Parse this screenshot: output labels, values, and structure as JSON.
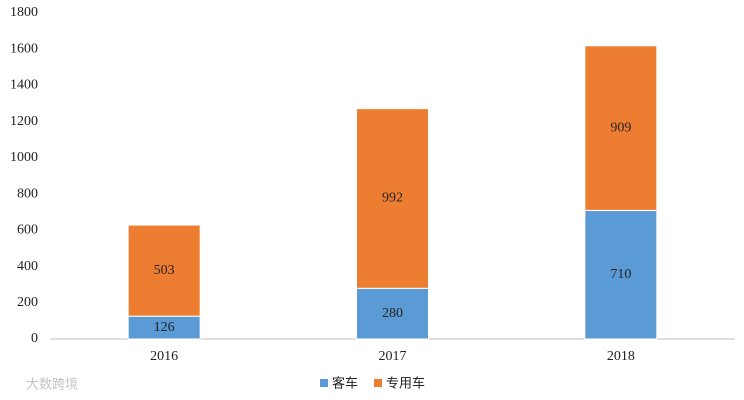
{
  "chart_data": {
    "type": "stacked_bar",
    "categories": [
      "2016",
      "2017",
      "2018"
    ],
    "series": [
      {
        "name": "客车",
        "color": "#5b9bd5",
        "values": [
          126,
          280,
          710
        ]
      },
      {
        "name": "专用车",
        "color": "#ed7d31",
        "values": [
          503,
          992,
          909
        ]
      }
    ],
    "ylim": [
      0,
      1800
    ],
    "yticks": [
      0,
      200,
      400,
      600,
      800,
      1000,
      1200,
      1400,
      1600,
      1800
    ],
    "grid": false,
    "legend": "bottom",
    "watermark": "大数跨境"
  }
}
